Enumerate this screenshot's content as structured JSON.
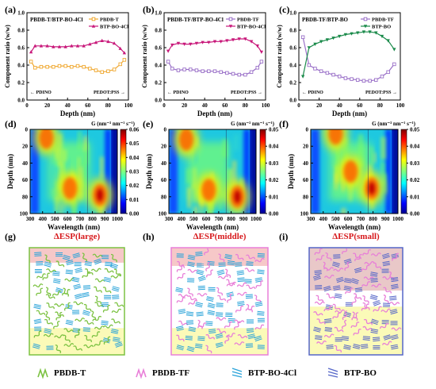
{
  "chart_data": [
    {
      "type": "line",
      "panel": "(a)",
      "title": "PBDB-T/BTP-BO-4Cl",
      "xlabel": "Depth (nm)",
      "ylabel": "Component ratio (w/w)",
      "xlim": [
        0,
        100
      ],
      "ylim": [
        0.0,
        1.0
      ],
      "xticks": [
        0,
        20,
        40,
        60,
        80,
        100
      ],
      "yticks": [
        "0.0",
        "0.2",
        "0.4",
        "0.6",
        "0.8",
        "1.0"
      ],
      "left_note": "PDINO",
      "right_note": "PEDOT:PSS",
      "x": [
        4,
        8,
        14,
        20,
        26,
        32,
        38,
        44,
        50,
        56,
        62,
        68,
        74,
        80,
        86,
        92,
        96
      ],
      "series": [
        {
          "name": "PBDB-T",
          "color": "#f0a830",
          "marker": "square",
          "values": [
            0.44,
            0.37,
            0.38,
            0.38,
            0.38,
            0.39,
            0.39,
            0.38,
            0.39,
            0.38,
            0.36,
            0.34,
            0.32,
            0.33,
            0.35,
            0.41,
            0.46
          ]
        },
        {
          "name": "BTP-BO-4Cl",
          "color": "#c8187a",
          "marker": "triangle-up",
          "values": [
            0.55,
            0.62,
            0.62,
            0.62,
            0.61,
            0.61,
            0.61,
            0.62,
            0.62,
            0.62,
            0.64,
            0.66,
            0.68,
            0.67,
            0.65,
            0.59,
            0.54
          ]
        }
      ]
    },
    {
      "type": "line",
      "panel": "(b)",
      "title": "PBDB-TF/BTP-BO-4Cl",
      "xlabel": "Depth (nm)",
      "ylabel": "Component ratio (w/w)",
      "xlim": [
        0,
        100
      ],
      "ylim": [
        0.0,
        1.0
      ],
      "xticks": [
        0,
        20,
        40,
        60,
        80,
        100
      ],
      "yticks": [
        "0.0",
        "0.2",
        "0.4",
        "0.6",
        "0.8",
        "1.0"
      ],
      "left_note": "PDINO",
      "right_note": "PEDOT:PSS",
      "x": [
        4,
        8,
        14,
        20,
        26,
        32,
        38,
        44,
        50,
        56,
        62,
        68,
        74,
        80,
        86,
        92,
        96
      ],
      "series": [
        {
          "name": "PBDB-TF",
          "color": "#9a70c8",
          "marker": "square",
          "values": [
            0.44,
            0.36,
            0.34,
            0.35,
            0.35,
            0.34,
            0.33,
            0.33,
            0.33,
            0.32,
            0.31,
            0.3,
            0.29,
            0.29,
            0.32,
            0.37,
            0.44
          ]
        },
        {
          "name": "BTP-BO-4Cl",
          "color": "#c8187a",
          "marker": "triangle-down",
          "values": [
            0.56,
            0.63,
            0.65,
            0.64,
            0.64,
            0.65,
            0.66,
            0.66,
            0.67,
            0.67,
            0.68,
            0.69,
            0.7,
            0.7,
            0.67,
            0.62,
            0.55
          ]
        }
      ]
    },
    {
      "type": "line",
      "panel": "(c)",
      "title": "PBDB-TF/BTP-BO",
      "xlabel": "Depth (nm)",
      "ylabel": "Component ratio (w/w)",
      "xlim": [
        0,
        100
      ],
      "ylim": [
        0.0,
        1.0
      ],
      "xticks": [
        0,
        20,
        40,
        60,
        80,
        100
      ],
      "yticks": [
        "0.0",
        "0.2",
        "0.4",
        "0.6",
        "0.8",
        "1.0"
      ],
      "left_note": "PDINO",
      "right_note": "PEDOT:PSS",
      "x": [
        4,
        10,
        16,
        22,
        28,
        34,
        40,
        46,
        52,
        58,
        64,
        70,
        76,
        82,
        88,
        94
      ],
      "series": [
        {
          "name": "PBDB-TF",
          "color": "#9a70c8",
          "marker": "square",
          "values": [
            0.72,
            0.4,
            0.36,
            0.33,
            0.31,
            0.29,
            0.27,
            0.25,
            0.24,
            0.23,
            0.22,
            0.22,
            0.23,
            0.27,
            0.32,
            0.41
          ]
        },
        {
          "name": "BTP-BO",
          "color": "#1a8a4a",
          "marker": "triangle-down",
          "values": [
            0.27,
            0.6,
            0.64,
            0.67,
            0.69,
            0.71,
            0.73,
            0.75,
            0.76,
            0.77,
            0.78,
            0.78,
            0.77,
            0.73,
            0.68,
            0.58
          ]
        }
      ]
    },
    {
      "type": "heatmap",
      "panel": "(d)",
      "colorbar_title": "G (nm⁻³ nm⁻¹ s⁻¹)",
      "xlabel": "Wavelength (nm)",
      "ylabel": "Depth (nm)",
      "xlim": [
        300,
        1000
      ],
      "ylim": [
        0,
        100
      ],
      "xticks": [
        300,
        400,
        500,
        600,
        700,
        800,
        900,
        1000
      ],
      "yticks": [
        0,
        20,
        40,
        60,
        80,
        100
      ],
      "cbar_ticks": [
        "0.00",
        "0.01",
        "0.02",
        "0.03",
        "0.04",
        "0.05",
        "0.06"
      ],
      "colormap": "jet",
      "hotspots": [
        {
          "wavelength": 860,
          "depth": 78,
          "value": 0.06
        },
        {
          "wavelength": 620,
          "depth": 70,
          "value": 0.035
        },
        {
          "wavelength": 430,
          "depth": 10,
          "value": 0.03
        }
      ]
    },
    {
      "type": "heatmap",
      "panel": "(e)",
      "colorbar_title": "G (nm⁻³ nm⁻¹ s⁻¹)",
      "xlabel": "Wavelength (nm)",
      "ylabel": "Depth (nm)",
      "xlim": [
        300,
        1000
      ],
      "ylim": [
        0,
        100
      ],
      "xticks": [
        300,
        400,
        500,
        600,
        700,
        800,
        900,
        1000
      ],
      "yticks": [
        0,
        20,
        40,
        60,
        80,
        100
      ],
      "cbar_ticks": [
        "0.00",
        "0.01",
        "0.02",
        "0.03",
        "0.04",
        "0.05"
      ],
      "colormap": "jet",
      "hotspots": [
        {
          "wavelength": 850,
          "depth": 80,
          "value": 0.05
        },
        {
          "wavelength": 620,
          "depth": 72,
          "value": 0.035
        },
        {
          "wavelength": 440,
          "depth": 12,
          "value": 0.03
        }
      ]
    },
    {
      "type": "heatmap",
      "panel": "(f)",
      "colorbar_title": "G (nm⁻³ nm⁻¹ s⁻¹)",
      "xlabel": "Wavelength (nm)",
      "ylabel": "Depth (nm)",
      "xlim": [
        300,
        1000
      ],
      "ylim": [
        0,
        100
      ],
      "xticks": [
        300,
        400,
        500,
        600,
        700,
        800,
        900,
        1000
      ],
      "yticks": [
        0,
        20,
        40,
        60,
        80,
        100
      ],
      "cbar_ticks": [
        "0.00",
        "0.01",
        "0.02",
        "0.03",
        "0.04",
        "0.05"
      ],
      "colormap": "jet",
      "hotspots": [
        {
          "wavelength": 790,
          "depth": 70,
          "value": 0.05
        },
        {
          "wavelength": 500,
          "depth": 5,
          "value": 0.05
        },
        {
          "wavelength": 620,
          "depth": 50,
          "value": 0.03
        }
      ]
    }
  ],
  "schematics": [
    {
      "panel": "(g)",
      "title": "ΔESP(large)"
    },
    {
      "panel": "(h)",
      "title": "ΔESP(middle)"
    },
    {
      "panel": "(i)",
      "title": "ΔESP(small)"
    }
  ],
  "legend": [
    {
      "label": "PBDB-T",
      "color": "#7cc242"
    },
    {
      "label": "PBDB-TF",
      "color": "#e87fd8"
    },
    {
      "label": "BTP-BO-4Cl",
      "color": "#29a3d9"
    },
    {
      "label": "BTP-BO",
      "color": "#5566c8"
    }
  ]
}
